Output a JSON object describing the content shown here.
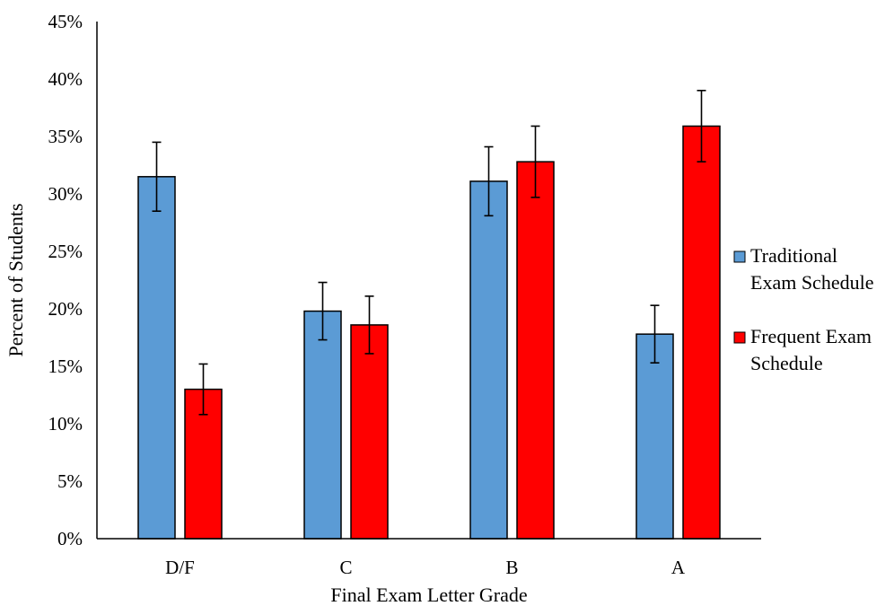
{
  "chart_data": {
    "type": "bar",
    "categories": [
      "D/F",
      "C",
      "B",
      "A"
    ],
    "series": [
      {
        "name": "Traditional Exam Schedule",
        "legend_lines": [
          "Traditional",
          "Exam Schedule"
        ],
        "color": "#5b9bd5",
        "values": [
          31.5,
          19.8,
          31.1,
          17.8
        ],
        "error": [
          3.0,
          2.5,
          3.0,
          2.5
        ]
      },
      {
        "name": "Frequent Exam Schedule",
        "legend_lines": [
          "Frequent Exam",
          "Schedule"
        ],
        "color": "#ff0000",
        "values": [
          13.0,
          18.6,
          32.8,
          35.9
        ],
        "error": [
          2.2,
          2.5,
          3.1,
          3.1
        ]
      }
    ],
    "xlabel": "Final Exam Letter Grade",
    "ylabel": "Percent of Students",
    "ylim": [
      0,
      45
    ],
    "yticks": [
      "0%",
      "5%",
      "10%",
      "15%",
      "20%",
      "25%",
      "30%",
      "35%",
      "40%",
      "45%"
    ],
    "grid": false,
    "legend_position": "right"
  }
}
